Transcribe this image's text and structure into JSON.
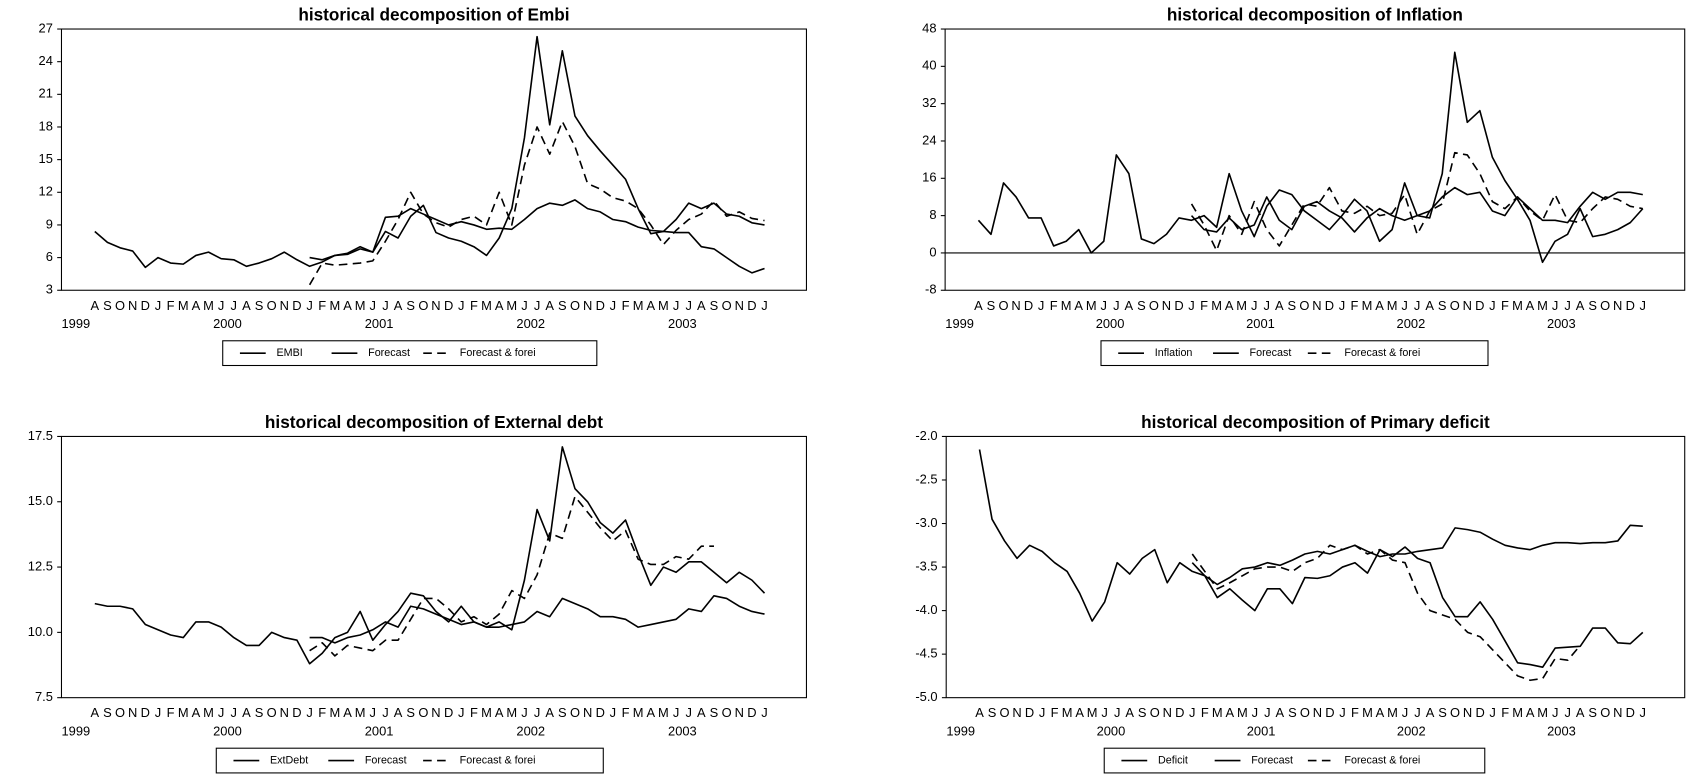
{
  "chart_data": [
    {
      "type": "line",
      "title": "historical decomposition of Embi",
      "categories": [
        "A",
        "S",
        "O",
        "N",
        "D",
        "J",
        "F",
        "M",
        "A",
        "M",
        "J",
        "J",
        "A",
        "S",
        "O",
        "N",
        "D",
        "J",
        "F",
        "M",
        "A",
        "M",
        "J",
        "J",
        "A",
        "S",
        "O",
        "N",
        "D",
        "J",
        "F",
        "M",
        "A",
        "M",
        "J",
        "J",
        "A",
        "S",
        "O",
        "N",
        "D",
        "J",
        "F",
        "M",
        "A",
        "M",
        "J",
        "J",
        "A",
        "S",
        "O",
        "N",
        "D",
        "J"
      ],
      "year_labels": [
        "1999",
        "2000",
        "2001",
        "2002",
        "2003"
      ],
      "ylim": [
        3,
        27
      ],
      "yticks": [
        3,
        6,
        9,
        12,
        15,
        18,
        21,
        24,
        27
      ],
      "series": [
        {
          "name": "EMBI",
          "color": "#000000",
          "style": "solid",
          "values": [
            8.4,
            7.4,
            6.9,
            6.6,
            5.1,
            6.0,
            5.5,
            5.4,
            6.2,
            6.5,
            5.9,
            5.8,
            5.2,
            5.5,
            5.9,
            6.5,
            5.8,
            5.2,
            5.6,
            6.2,
            6.4,
            7.0,
            6.5,
            8.4,
            7.8,
            9.8,
            10.8,
            8.3,
            7.8,
            7.5,
            7.0,
            6.2,
            7.8,
            10.5,
            17.0,
            26.3,
            18.2,
            25.0,
            19.0,
            17.2,
            15.8,
            14.5,
            13.2,
            10.5,
            8.2,
            8.4,
            9.5,
            11.0,
            10.5,
            11.0,
            10.0,
            9.8,
            9.2,
            9.0
          ]
        },
        {
          "name": "Forecast",
          "color": "#000000",
          "style": "solid",
          "values": [
            null,
            null,
            null,
            null,
            null,
            null,
            null,
            null,
            null,
            null,
            null,
            null,
            null,
            null,
            null,
            null,
            null,
            6.0,
            5.8,
            6.2,
            6.3,
            6.8,
            6.5,
            9.7,
            9.8,
            10.5,
            10.0,
            9.5,
            9.0,
            9.3,
            9.0,
            8.6,
            8.7,
            8.6,
            9.5,
            10.5,
            11.0,
            10.8,
            11.3,
            10.5,
            10.2,
            9.5,
            9.3,
            8.8,
            8.5,
            8.4,
            8.3,
            8.3,
            7.0,
            6.8,
            6.0,
            5.2,
            4.6,
            5.0
          ]
        },
        {
          "name": "Forecast & forei",
          "color": "#000000",
          "style": "dashed",
          "values": [
            null,
            null,
            null,
            null,
            null,
            null,
            null,
            null,
            null,
            null,
            null,
            null,
            null,
            null,
            null,
            null,
            null,
            3.5,
            5.5,
            5.3,
            5.4,
            5.5,
            5.7,
            7.5,
            9.5,
            12.0,
            10.0,
            9.2,
            8.8,
            9.5,
            9.8,
            9.0,
            12.0,
            9.0,
            14.5,
            18.0,
            15.5,
            18.5,
            16.2,
            12.8,
            12.3,
            11.5,
            11.2,
            10.5,
            9.0,
            7.2,
            8.5,
            9.5,
            10.0,
            11.2,
            9.8,
            10.2,
            9.6,
            9.4
          ]
        }
      ]
    },
    {
      "type": "line",
      "title": "historical decomposition of Inflation",
      "categories": [
        "A",
        "S",
        "O",
        "N",
        "D",
        "J",
        "F",
        "M",
        "A",
        "M",
        "J",
        "J",
        "A",
        "S",
        "O",
        "N",
        "D",
        "J",
        "F",
        "M",
        "A",
        "M",
        "J",
        "J",
        "A",
        "S",
        "O",
        "N",
        "D",
        "J",
        "F",
        "M",
        "A",
        "M",
        "J",
        "J",
        "A",
        "S",
        "O",
        "N",
        "D",
        "J",
        "F",
        "M",
        "A",
        "M",
        "J",
        "J",
        "A",
        "S",
        "O",
        "N",
        "D",
        "J"
      ],
      "year_labels": [
        "1999",
        "2000",
        "2001",
        "2002",
        "2003"
      ],
      "ylim": [
        -8,
        48
      ],
      "yticks": [
        -8,
        0,
        8,
        16,
        24,
        32,
        40,
        48
      ],
      "zero_line": true,
      "series": [
        {
          "name": "Inflation",
          "color": "#000000",
          "style": "solid",
          "values": [
            7,
            4,
            15,
            12,
            7.5,
            7.5,
            1.5,
            2.5,
            5,
            0,
            2.5,
            21,
            17,
            3,
            2,
            4,
            7.5,
            7,
            8,
            5.5,
            17,
            9,
            3.5,
            10,
            13.5,
            12.5,
            9,
            7,
            5,
            8,
            11.5,
            9,
            2.5,
            5,
            15,
            8,
            7.5,
            17,
            43,
            28,
            30.5,
            20.5,
            15.5,
            11.5,
            7,
            -2,
            2.5,
            4,
            9.5,
            3.5,
            4,
            5,
            6.5,
            9.5
          ]
        },
        {
          "name": "Forecast",
          "color": "#000000",
          "style": "solid",
          "values": [
            null,
            null,
            null,
            null,
            null,
            null,
            null,
            null,
            null,
            null,
            null,
            null,
            null,
            null,
            null,
            null,
            null,
            8,
            5,
            4.5,
            7.5,
            5,
            6,
            12,
            7,
            5,
            10,
            11,
            9,
            7.5,
            4.5,
            7.5,
            9.5,
            8,
            7,
            8,
            9,
            12,
            14,
            12.5,
            13,
            9,
            8,
            12,
            9.5,
            7,
            7,
            6.5,
            10,
            13,
            11.5,
            13,
            13,
            12.5
          ]
        },
        {
          "name": "Forecast & forei",
          "color": "#000000",
          "style": "dashed",
          "values": [
            null,
            null,
            null,
            null,
            null,
            null,
            null,
            null,
            null,
            null,
            null,
            null,
            null,
            null,
            null,
            null,
            null,
            10.5,
            6,
            0.5,
            8,
            4,
            11,
            5,
            1.5,
            6,
            10.5,
            10,
            14,
            9,
            8.5,
            10,
            8,
            8.5,
            12.5,
            4,
            9,
            10.5,
            21.5,
            21,
            17,
            11,
            9.5,
            12,
            9,
            7,
            12.5,
            7,
            6.5,
            9.5,
            12,
            11.5,
            10,
            9.5
          ]
        }
      ]
    },
    {
      "type": "line",
      "title": "historical decomposition of External debt",
      "categories": [
        "A",
        "S",
        "O",
        "N",
        "D",
        "J",
        "F",
        "M",
        "A",
        "M",
        "J",
        "J",
        "A",
        "S",
        "O",
        "N",
        "D",
        "J",
        "F",
        "M",
        "A",
        "M",
        "J",
        "J",
        "A",
        "S",
        "O",
        "N",
        "D",
        "J",
        "F",
        "M",
        "A",
        "M",
        "J",
        "J",
        "A",
        "S",
        "O",
        "N",
        "D",
        "J",
        "F",
        "M",
        "A",
        "M",
        "J",
        "J",
        "A",
        "S",
        "O",
        "N",
        "D",
        "J"
      ],
      "year_labels": [
        "1999",
        "2000",
        "2001",
        "2002",
        "2003"
      ],
      "ylim": [
        7.5,
        17.5
      ],
      "yticks": [
        7.5,
        {
          "value": 10,
          "label": "10.0"
        },
        12.5,
        {
          "value": 15,
          "label": "15.0"
        },
        17.5
      ],
      "series": [
        {
          "name": "ExtDebt",
          "color": "#000000",
          "style": "solid",
          "values": [
            11.1,
            11.0,
            11.0,
            10.9,
            10.3,
            10.1,
            9.9,
            9.8,
            10.4,
            10.4,
            10.2,
            9.8,
            9.5,
            9.5,
            10.0,
            9.8,
            9.7,
            8.8,
            9.2,
            9.8,
            10.0,
            10.8,
            9.7,
            10.3,
            10.8,
            11.5,
            11.4,
            10.8,
            10.4,
            11.0,
            10.4,
            10.2,
            10.4,
            10.1,
            12.0,
            14.7,
            13.5,
            17.1,
            15.5,
            15.0,
            14.2,
            13.8,
            14.3,
            13.0,
            11.8,
            12.5,
            12.3,
            12.7,
            12.7,
            12.3,
            11.9,
            12.3,
            12.0,
            11.5
          ]
        },
        {
          "name": "Forecast",
          "color": "#000000",
          "style": "solid",
          "values": [
            null,
            null,
            null,
            null,
            null,
            null,
            null,
            null,
            null,
            null,
            null,
            null,
            null,
            null,
            null,
            null,
            null,
            9.8,
            9.8,
            9.6,
            9.8,
            9.9,
            10.1,
            10.4,
            10.2,
            11.0,
            10.9,
            10.7,
            10.5,
            10.3,
            10.4,
            10.2,
            10.2,
            10.3,
            10.4,
            10.8,
            10.6,
            11.3,
            11.1,
            10.9,
            10.6,
            10.6,
            10.5,
            10.2,
            10.3,
            10.4,
            10.5,
            10.9,
            10.8,
            11.4,
            11.3,
            11.0,
            10.8,
            10.7
          ]
        },
        {
          "name": "Forecast & forei",
          "color": "#000000",
          "style": "dashed",
          "values": [
            null,
            null,
            null,
            null,
            null,
            null,
            null,
            null,
            null,
            null,
            null,
            null,
            null,
            null,
            null,
            null,
            null,
            9.3,
            9.6,
            9.1,
            9.5,
            9.4,
            9.3,
            9.7,
            9.7,
            10.5,
            11.3,
            11.3,
            10.9,
            10.4,
            10.6,
            10.3,
            10.7,
            11.6,
            11.3,
            12.2,
            13.8,
            13.6,
            15.2,
            14.6,
            14.0,
            13.5,
            13.9,
            12.8,
            12.6,
            12.6,
            12.9,
            12.8,
            13.3,
            13.3,
            null,
            null,
            null,
            null
          ]
        }
      ]
    },
    {
      "type": "line",
      "title": "historical decomposition of Primary deficit",
      "categories": [
        "A",
        "S",
        "O",
        "N",
        "D",
        "J",
        "F",
        "M",
        "A",
        "M",
        "J",
        "J",
        "A",
        "S",
        "O",
        "N",
        "D",
        "J",
        "F",
        "M",
        "A",
        "M",
        "J",
        "J",
        "A",
        "S",
        "O",
        "N",
        "D",
        "J",
        "F",
        "M",
        "A",
        "M",
        "J",
        "J",
        "A",
        "S",
        "O",
        "N",
        "D",
        "J",
        "F",
        "M",
        "A",
        "M",
        "J",
        "J",
        "A",
        "S",
        "O",
        "N",
        "D",
        "J"
      ],
      "year_labels": [
        "1999",
        "2000",
        "2001",
        "2002",
        "2003"
      ],
      "ylim": [
        -5,
        -2
      ],
      "yticks": [
        {
          "value": -5,
          "label": "-5.0"
        },
        -4.5,
        {
          "value": -4,
          "label": "-4.0"
        },
        -3.5,
        {
          "value": -3,
          "label": "-3.0"
        },
        -2.5,
        {
          "value": -2,
          "label": "-2.0"
        }
      ],
      "series": [
        {
          "name": "Deficit",
          "color": "#000000",
          "style": "solid",
          "values": [
            -2.15,
            -2.95,
            -3.2,
            -3.4,
            -3.25,
            -3.32,
            -3.45,
            -3.55,
            -3.8,
            -4.12,
            -3.9,
            -3.45,
            -3.58,
            -3.4,
            -3.3,
            -3.68,
            -3.45,
            -3.55,
            -3.6,
            -3.85,
            -3.75,
            -3.88,
            -4.0,
            -3.75,
            -3.75,
            -3.92,
            -3.62,
            -3.63,
            -3.6,
            -3.5,
            -3.45,
            -3.57,
            -3.3,
            -3.38,
            -3.27,
            -3.4,
            -3.45,
            -3.85,
            -4.07,
            -4.07,
            -3.9,
            -4.1,
            -4.35,
            -4.6,
            -4.62,
            -4.65,
            -4.43,
            -4.42,
            -4.41,
            -4.2,
            -4.2,
            -4.37,
            -4.38,
            -4.25
          ]
        },
        {
          "name": "Forecast",
          "color": "#000000",
          "style": "solid",
          "values": [
            null,
            null,
            null,
            null,
            null,
            null,
            null,
            null,
            null,
            null,
            null,
            null,
            null,
            null,
            null,
            null,
            null,
            -3.45,
            -3.6,
            -3.7,
            -3.62,
            -3.52,
            -3.5,
            -3.45,
            -3.48,
            -3.42,
            -3.35,
            -3.32,
            -3.35,
            -3.3,
            -3.25,
            -3.32,
            -3.38,
            -3.35,
            -3.35,
            -3.32,
            -3.3,
            -3.28,
            -3.05,
            -3.07,
            -3.1,
            -3.18,
            -3.25,
            -3.28,
            -3.3,
            -3.25,
            -3.22,
            -3.22,
            -3.23,
            -3.22,
            -3.22,
            -3.2,
            -3.02,
            -3.03
          ]
        },
        {
          "name": "Forecast & forei",
          "color": "#000000",
          "style": "dashed",
          "values": [
            null,
            null,
            null,
            null,
            null,
            null,
            null,
            null,
            null,
            null,
            null,
            null,
            null,
            null,
            null,
            null,
            null,
            -3.35,
            -3.55,
            -3.75,
            -3.68,
            -3.6,
            -3.52,
            -3.5,
            -3.5,
            -3.55,
            -3.45,
            -3.4,
            -3.25,
            -3.3,
            -3.25,
            -3.35,
            -3.3,
            -3.42,
            -3.45,
            -3.8,
            -4.0,
            -4.05,
            -4.1,
            -4.25,
            -4.3,
            -4.45,
            -4.6,
            -4.75,
            -4.8,
            -4.78,
            -4.55,
            -4.57,
            -4.4,
            null,
            null,
            null,
            null,
            null
          ]
        }
      ]
    }
  ]
}
